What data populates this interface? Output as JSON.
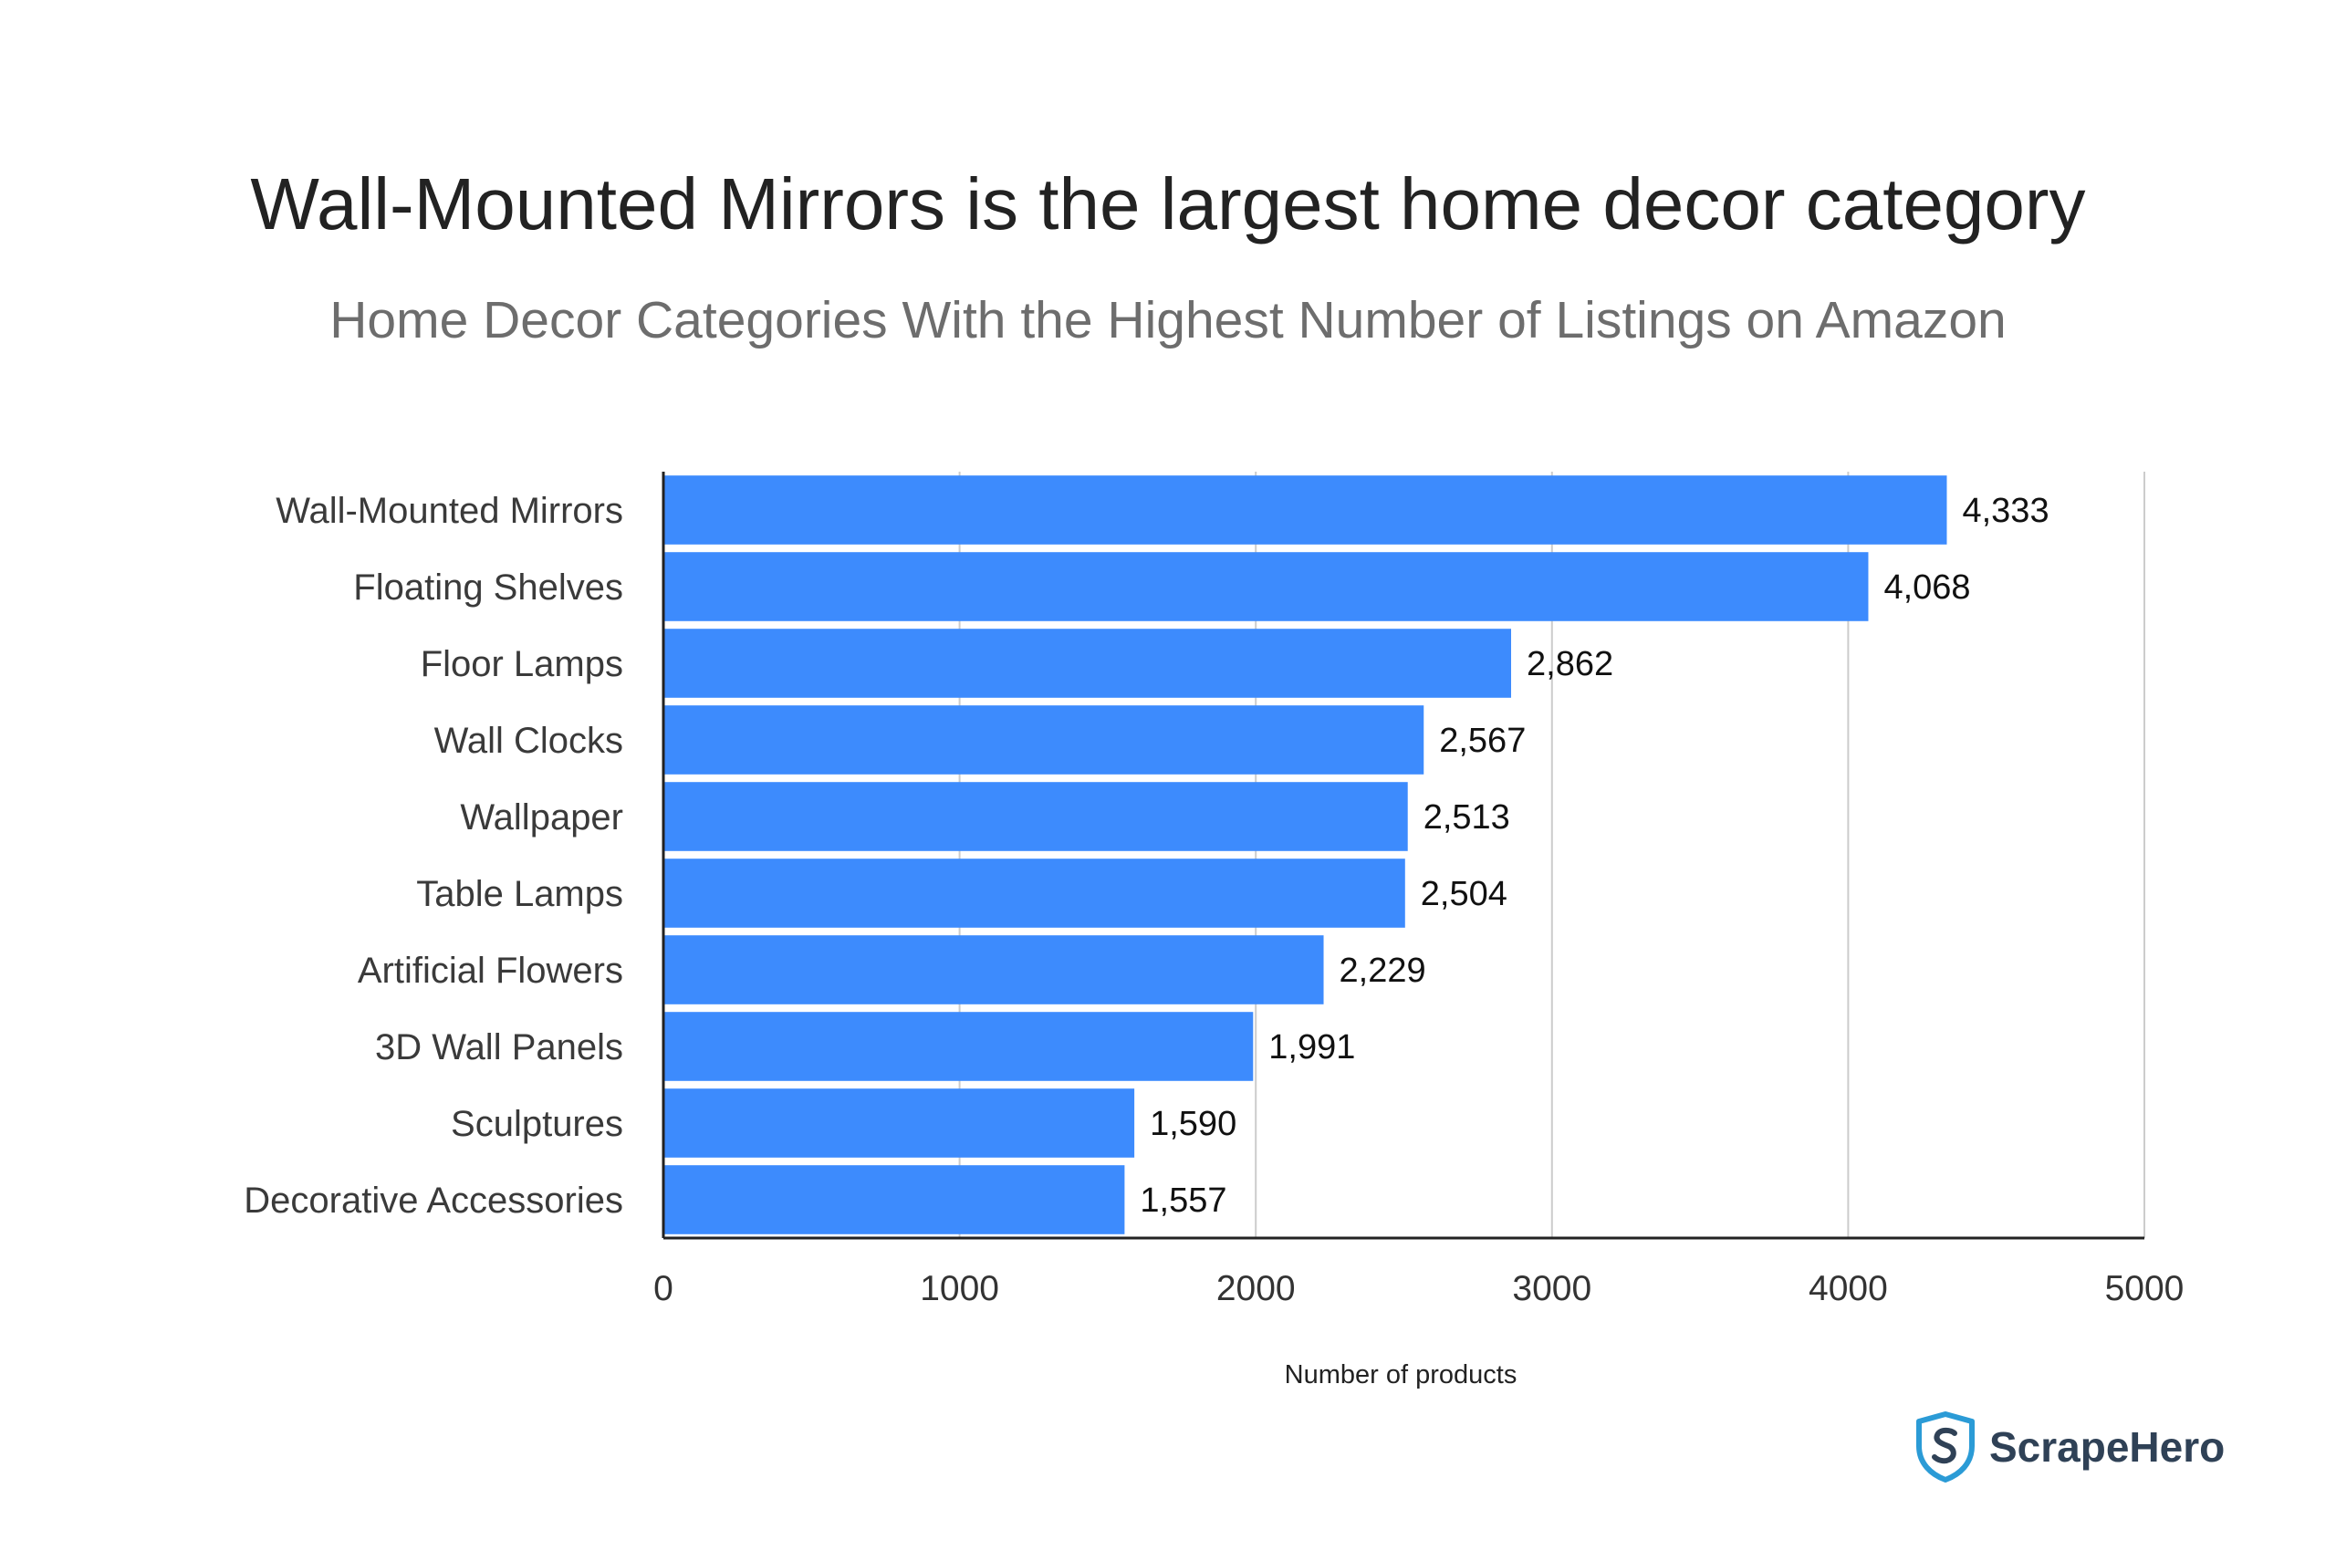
{
  "chart_data": {
    "type": "bar",
    "orientation": "horizontal",
    "title": "Wall-Mounted Mirrors is the largest home decor category",
    "subtitle": "Home Decor Categories With the Highest Number of Listings on Amazon",
    "categories": [
      "Wall-Mounted Mirrors",
      "Floating Shelves",
      "Floor Lamps",
      "Wall Clocks",
      "Wallpaper",
      "Table Lamps",
      "Artificial Flowers",
      "3D Wall Panels",
      "Sculptures",
      "Decorative Accessories"
    ],
    "values": [
      4333,
      4068,
      2862,
      2567,
      2513,
      2504,
      2229,
      1991,
      1590,
      1557
    ],
    "value_labels": [
      "4,333",
      "4,068",
      "2,862",
      "2,567",
      "2,513",
      "2,504",
      "2,229",
      "1,991",
      "1,590",
      "1,557"
    ],
    "xlabel": "Number of products",
    "ylabel": "",
    "xlim": [
      0,
      5000
    ],
    "xticks": [
      0,
      1000,
      2000,
      3000,
      4000,
      5000
    ],
    "grid": "vertical",
    "legend": "none",
    "bar_color": "#3d8bfd"
  },
  "logo": {
    "text": "ScrapeHero",
    "icon": "shield-s-icon",
    "color": "#2b9bd6",
    "text_color": "#2f4156"
  }
}
